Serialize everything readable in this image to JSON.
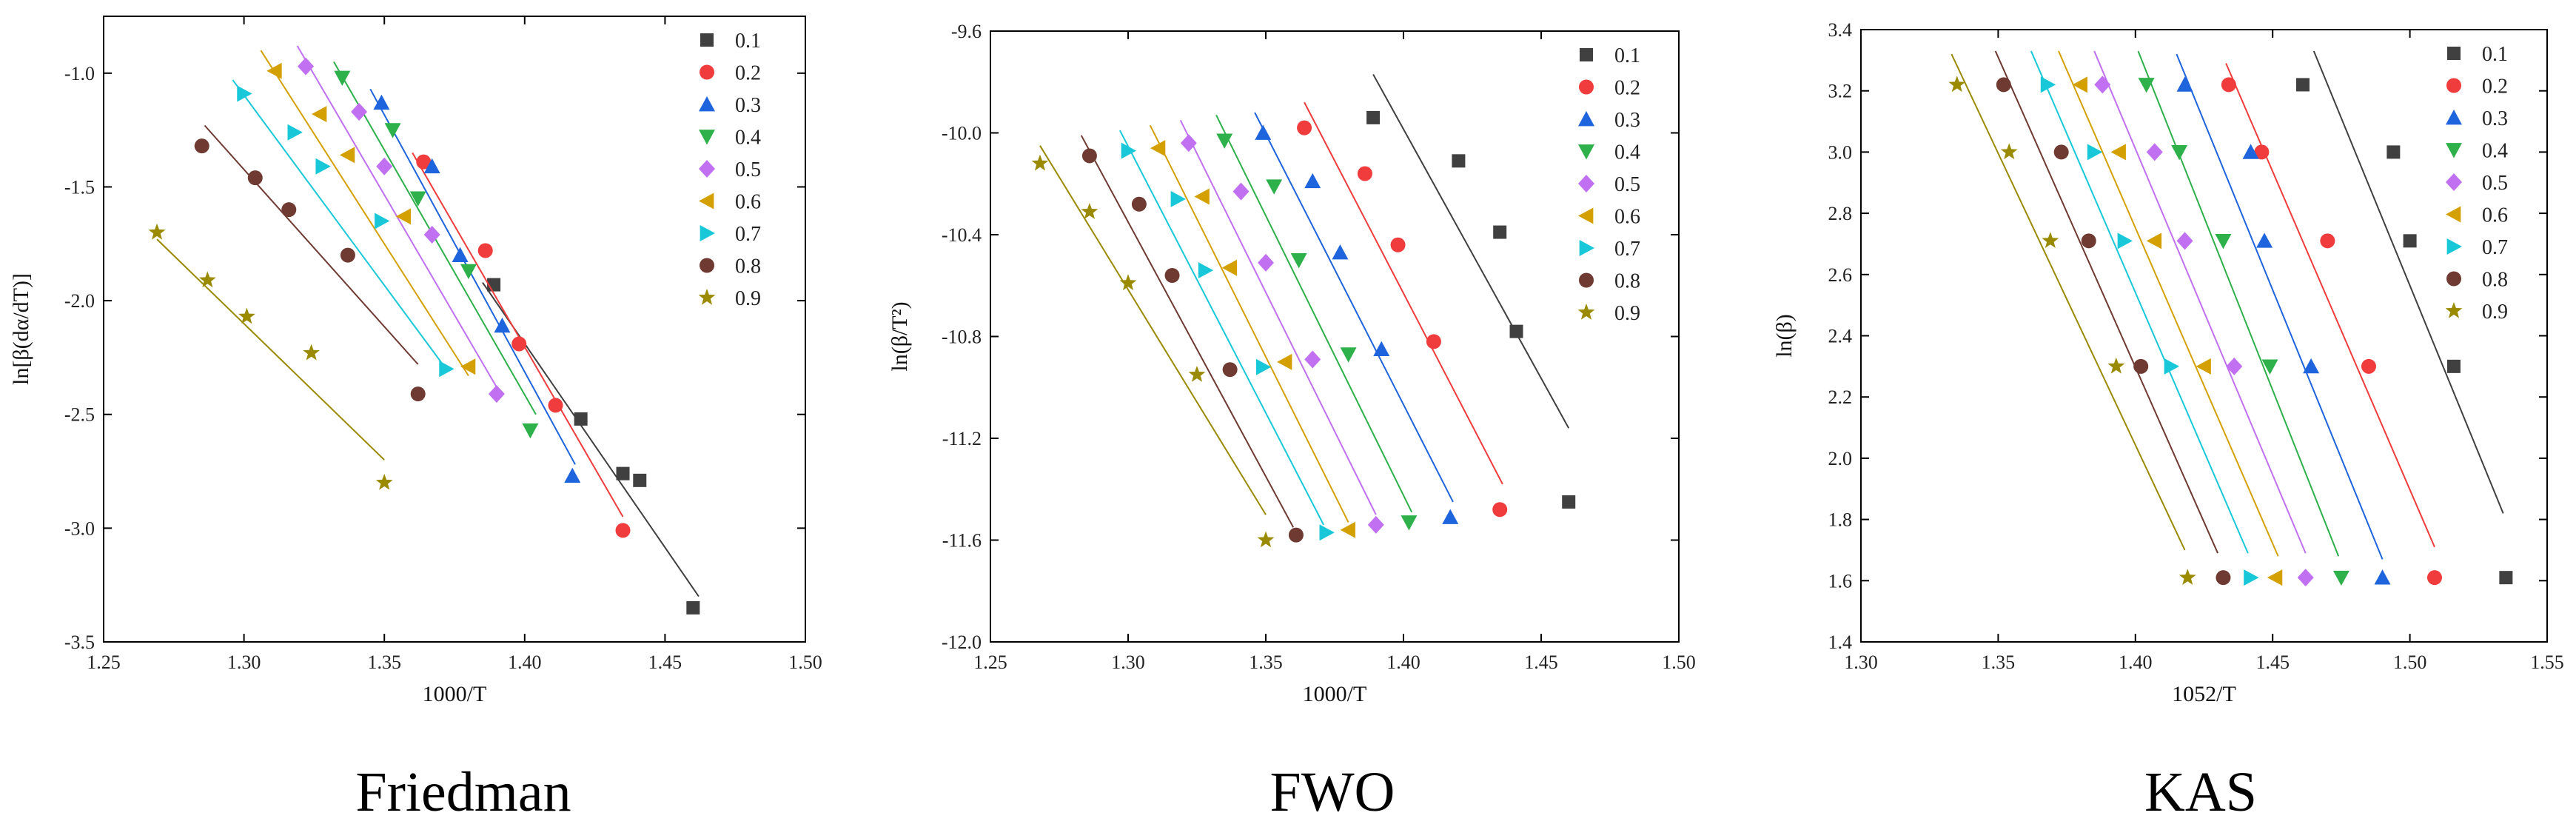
{
  "series_names": [
    "0.1",
    "0.2",
    "0.3",
    "0.4",
    "0.5",
    "0.6",
    "0.7",
    "0.8",
    "0.9"
  ],
  "colors": [
    "#404040",
    "#f03c3c",
    "#1e64dc",
    "#2eb04a",
    "#c070f0",
    "#d4a000",
    "#18c8d8",
    "#6e3a32",
    "#9a8a00"
  ],
  "markers": [
    "square",
    "circle",
    "triangle-up",
    "triangle-down",
    "diamond",
    "triangle-left",
    "triangle-right",
    "circle",
    "star"
  ],
  "chart_data": [
    {
      "type": "scatter",
      "caption": "Friedman",
      "xlabel": "1000/T",
      "ylabel": "ln[β(dα/dT)]",
      "xlim": [
        1.25,
        1.5
      ],
      "ylim": [
        -3.5,
        -0.75
      ],
      "xticks": [
        "1.25",
        "1.30",
        "1.35",
        "1.40",
        "1.45",
        "1.50"
      ],
      "yticks": [
        "-3.5",
        "-3.0",
        "-2.5",
        "-2.0",
        "-1.5",
        "-1.0"
      ],
      "series": [
        {
          "name": "0.1",
          "points": [
            [
              1.389,
              -1.93
            ],
            [
              1.42,
              -2.52
            ],
            [
              1.435,
              -2.76
            ],
            [
              1.441,
              -2.79
            ],
            [
              1.46,
              -3.35
            ]
          ],
          "fit": [
            [
              1.385,
              -1.92
            ],
            [
              1.462,
              -3.3
            ]
          ]
        },
        {
          "name": "0.2",
          "points": [
            [
              1.364,
              -1.39
            ],
            [
              1.386,
              -1.78
            ],
            [
              1.398,
              -2.19
            ],
            [
              1.411,
              -2.46
            ],
            [
              1.435,
              -3.01
            ]
          ],
          "fit": [
            [
              1.36,
              -1.35
            ],
            [
              1.435,
              -2.95
            ]
          ]
        },
        {
          "name": "0.3",
          "points": [
            [
              1.349,
              -1.13
            ],
            [
              1.367,
              -1.41
            ],
            [
              1.377,
              -1.8
            ],
            [
              1.392,
              -2.11
            ],
            [
              1.417,
              -2.77
            ]
          ],
          "fit": [
            [
              1.345,
              -1.07
            ],
            [
              1.418,
              -2.72
            ]
          ]
        },
        {
          "name": "0.4",
          "points": [
            [
              1.335,
              -1.02
            ],
            [
              1.353,
              -1.25
            ],
            [
              1.362,
              -1.55
            ],
            [
              1.38,
              -1.87
            ],
            [
              1.402,
              -2.57
            ]
          ],
          "fit": [
            [
              1.332,
              -0.95
            ],
            [
              1.404,
              -2.5
            ]
          ]
        },
        {
          "name": "0.5",
          "points": [
            [
              1.322,
              -0.97
            ],
            [
              1.341,
              -1.17
            ],
            [
              1.35,
              -1.41
            ],
            [
              1.367,
              -1.71
            ],
            [
              1.39,
              -2.41
            ]
          ],
          "fit": [
            [
              1.319,
              -0.88
            ],
            [
              1.39,
              -2.38
            ]
          ]
        },
        {
          "name": "0.6",
          "points": [
            [
              1.311,
              -0.99
            ],
            [
              1.327,
              -1.18
            ],
            [
              1.337,
              -1.36
            ],
            [
              1.357,
              -1.63
            ],
            [
              1.38,
              -2.29
            ]
          ],
          "fit": [
            [
              1.306,
              -0.9
            ],
            [
              1.38,
              -2.33
            ]
          ]
        },
        {
          "name": "0.7",
          "points": [
            [
              1.3,
              -1.09
            ],
            [
              1.318,
              -1.26
            ],
            [
              1.328,
              -1.41
            ],
            [
              1.349,
              -1.65
            ],
            [
              1.372,
              -2.3
            ]
          ],
          "fit": [
            [
              1.296,
              -1.03
            ],
            [
              1.372,
              -2.3
            ]
          ]
        },
        {
          "name": "0.8",
          "points": [
            [
              1.285,
              -1.32
            ],
            [
              1.304,
              -1.46
            ],
            [
              1.316,
              -1.6
            ],
            [
              1.337,
              -1.8
            ],
            [
              1.362,
              -2.41
            ]
          ],
          "fit": [
            [
              1.286,
              -1.23
            ],
            [
              1.362,
              -2.28
            ]
          ]
        },
        {
          "name": "0.9",
          "points": [
            [
              1.269,
              -1.7
            ],
            [
              1.287,
              -1.91
            ],
            [
              1.301,
              -2.07
            ],
            [
              1.324,
              -2.23
            ],
            [
              1.35,
              -2.8
            ]
          ],
          "fit": [
            [
              1.269,
              -1.73
            ],
            [
              1.35,
              -2.7
            ]
          ]
        }
      ]
    },
    {
      "type": "scatter",
      "caption": "FWO",
      "xlabel": "1000/T",
      "ylabel": "ln(β/T²)",
      "xlim": [
        1.25,
        1.5
      ],
      "ylim": [
        -12.0,
        -9.6
      ],
      "xticks": [
        "1.25",
        "1.30",
        "1.35",
        "1.40",
        "1.45",
        "1.50"
      ],
      "yticks": [
        "-12.0",
        "-11.6",
        "-11.2",
        "-10.8",
        "-10.4",
        "-10.0",
        "-9.6"
      ],
      "series": [
        {
          "name": "0.1",
          "points": [
            [
              1.389,
              -9.94
            ],
            [
              1.42,
              -10.11
            ],
            [
              1.435,
              -10.39
            ],
            [
              1.441,
              -10.78
            ],
            [
              1.46,
              -11.45
            ]
          ],
          "fit": [
            [
              1.389,
              -9.77
            ],
            [
              1.46,
              -11.16
            ]
          ]
        },
        {
          "name": "0.2",
          "points": [
            [
              1.364,
              -9.98
            ],
            [
              1.386,
              -10.16
            ],
            [
              1.398,
              -10.44
            ],
            [
              1.411,
              -10.82
            ],
            [
              1.435,
              -11.48
            ]
          ],
          "fit": [
            [
              1.364,
              -9.88
            ],
            [
              1.436,
              -11.38
            ]
          ]
        },
        {
          "name": "0.3",
          "points": [
            [
              1.349,
              -10.0
            ],
            [
              1.367,
              -10.19
            ],
            [
              1.377,
              -10.47
            ],
            [
              1.392,
              -10.85
            ],
            [
              1.417,
              -11.51
            ]
          ],
          "fit": [
            [
              1.346,
              -9.92
            ],
            [
              1.418,
              -11.45
            ]
          ]
        },
        {
          "name": "0.4",
          "points": [
            [
              1.335,
              -10.03
            ],
            [
              1.353,
              -10.21
            ],
            [
              1.362,
              -10.5
            ],
            [
              1.38,
              -10.87
            ],
            [
              1.402,
              -11.53
            ]
          ],
          "fit": [
            [
              1.332,
              -9.93
            ],
            [
              1.403,
              -11.49
            ]
          ]
        },
        {
          "name": "0.5",
          "points": [
            [
              1.322,
              -10.04
            ],
            [
              1.341,
              -10.23
            ],
            [
              1.35,
              -10.51
            ],
            [
              1.367,
              -10.89
            ],
            [
              1.39,
              -11.54
            ]
          ],
          "fit": [
            [
              1.319,
              -9.95
            ],
            [
              1.39,
              -11.5
            ]
          ]
        },
        {
          "name": "0.6",
          "points": [
            [
              1.311,
              -10.06
            ],
            [
              1.327,
              -10.25
            ],
            [
              1.337,
              -10.53
            ],
            [
              1.357,
              -10.9
            ],
            [
              1.38,
              -11.56
            ]
          ],
          "fit": [
            [
              1.308,
              -9.97
            ],
            [
              1.38,
              -11.53
            ]
          ]
        },
        {
          "name": "0.7",
          "points": [
            [
              1.3,
              -10.07
            ],
            [
              1.318,
              -10.26
            ],
            [
              1.328,
              -10.54
            ],
            [
              1.349,
              -10.92
            ],
            [
              1.372,
              -11.57
            ]
          ],
          "fit": [
            [
              1.297,
              -9.99
            ],
            [
              1.371,
              -11.54
            ]
          ]
        },
        {
          "name": "0.8",
          "points": [
            [
              1.286,
              -10.09
            ],
            [
              1.304,
              -10.28
            ],
            [
              1.316,
              -10.56
            ],
            [
              1.337,
              -10.93
            ],
            [
              1.361,
              -11.58
            ]
          ],
          "fit": [
            [
              1.283,
              -10.01
            ],
            [
              1.36,
              -11.55
            ]
          ]
        },
        {
          "name": "0.9",
          "points": [
            [
              1.268,
              -10.12
            ],
            [
              1.286,
              -10.31
            ],
            [
              1.3,
              -10.59
            ],
            [
              1.325,
              -10.95
            ],
            [
              1.35,
              -11.6
            ]
          ],
          "fit": [
            [
              1.268,
              -10.05
            ],
            [
              1.35,
              -11.5
            ]
          ]
        }
      ]
    },
    {
      "type": "scatter",
      "caption": "KAS",
      "xlabel": "1052/T",
      "ylabel": "ln(β)",
      "xlim": [
        1.3,
        1.55
      ],
      "ylim": [
        1.4,
        3.4
      ],
      "xticks": [
        "1.30",
        "1.35",
        "1.40",
        "1.45",
        "1.50",
        "1.55"
      ],
      "yticks": [
        "1.4",
        "1.6",
        "1.8",
        "2.0",
        "2.2",
        "2.4",
        "2.6",
        "2.8",
        "3.0",
        "3.2",
        "3.4"
      ],
      "series": [
        {
          "name": "0.1",
          "points": [
            [
              1.461,
              3.22
            ],
            [
              1.494,
              3.0
            ],
            [
              1.5,
              2.71
            ],
            [
              1.516,
              2.3
            ],
            [
              1.535,
              1.61
            ]
          ],
          "fit": [
            [
              1.465,
              3.33
            ],
            [
              1.534,
              1.82
            ]
          ]
        },
        {
          "name": "0.2",
          "points": [
            [
              1.434,
              3.22
            ],
            [
              1.446,
              3.0
            ],
            [
              1.47,
              2.71
            ],
            [
              1.485,
              2.3
            ],
            [
              1.509,
              1.61
            ]
          ],
          "fit": [
            [
              1.433,
              3.29
            ],
            [
              1.509,
              1.71
            ]
          ]
        },
        {
          "name": "0.3",
          "points": [
            [
              1.418,
              3.22
            ],
            [
              1.442,
              3.0
            ],
            [
              1.447,
              2.71
            ],
            [
              1.464,
              2.3
            ],
            [
              1.49,
              1.61
            ]
          ],
          "fit": [
            [
              1.415,
              3.32
            ],
            [
              1.49,
              1.67
            ]
          ]
        },
        {
          "name": "0.4",
          "points": [
            [
              1.404,
              3.22
            ],
            [
              1.416,
              3.0
            ],
            [
              1.432,
              2.71
            ],
            [
              1.449,
              2.3
            ],
            [
              1.475,
              1.61
            ]
          ],
          "fit": [
            [
              1.401,
              3.33
            ],
            [
              1.474,
              1.68
            ]
          ]
        },
        {
          "name": "0.5",
          "points": [
            [
              1.388,
              3.22
            ],
            [
              1.407,
              3.0
            ],
            [
              1.418,
              2.71
            ],
            [
              1.436,
              2.3
            ],
            [
              1.462,
              1.61
            ]
          ],
          "fit": [
            [
              1.385,
              3.33
            ],
            [
              1.462,
              1.69
            ]
          ]
        },
        {
          "name": "0.6",
          "points": [
            [
              1.38,
              3.22
            ],
            [
              1.394,
              3.0
            ],
            [
              1.407,
              2.71
            ],
            [
              1.425,
              2.3
            ],
            [
              1.451,
              1.61
            ]
          ],
          "fit": [
            [
              1.372,
              3.33
            ],
            [
              1.452,
              1.68
            ]
          ]
        },
        {
          "name": "0.7",
          "points": [
            [
              1.368,
              3.22
            ],
            [
              1.385,
              3.0
            ],
            [
              1.396,
              2.71
            ],
            [
              1.413,
              2.3
            ],
            [
              1.442,
              1.61
            ]
          ],
          "fit": [
            [
              1.362,
              3.33
            ],
            [
              1.441,
              1.69
            ]
          ]
        },
        {
          "name": "0.8",
          "points": [
            [
              1.352,
              3.22
            ],
            [
              1.373,
              3.0
            ],
            [
              1.383,
              2.71
            ],
            [
              1.402,
              2.3
            ],
            [
              1.432,
              1.61
            ]
          ],
          "fit": [
            [
              1.349,
              3.33
            ],
            [
              1.43,
              1.69
            ]
          ]
        },
        {
          "name": "0.9",
          "points": [
            [
              1.335,
              3.22
            ],
            [
              1.354,
              3.0
            ],
            [
              1.369,
              2.71
            ],
            [
              1.393,
              2.3
            ],
            [
              1.419,
              1.61
            ]
          ],
          "fit": [
            [
              1.333,
              3.32
            ],
            [
              1.418,
              1.7
            ]
          ]
        }
      ]
    }
  ]
}
